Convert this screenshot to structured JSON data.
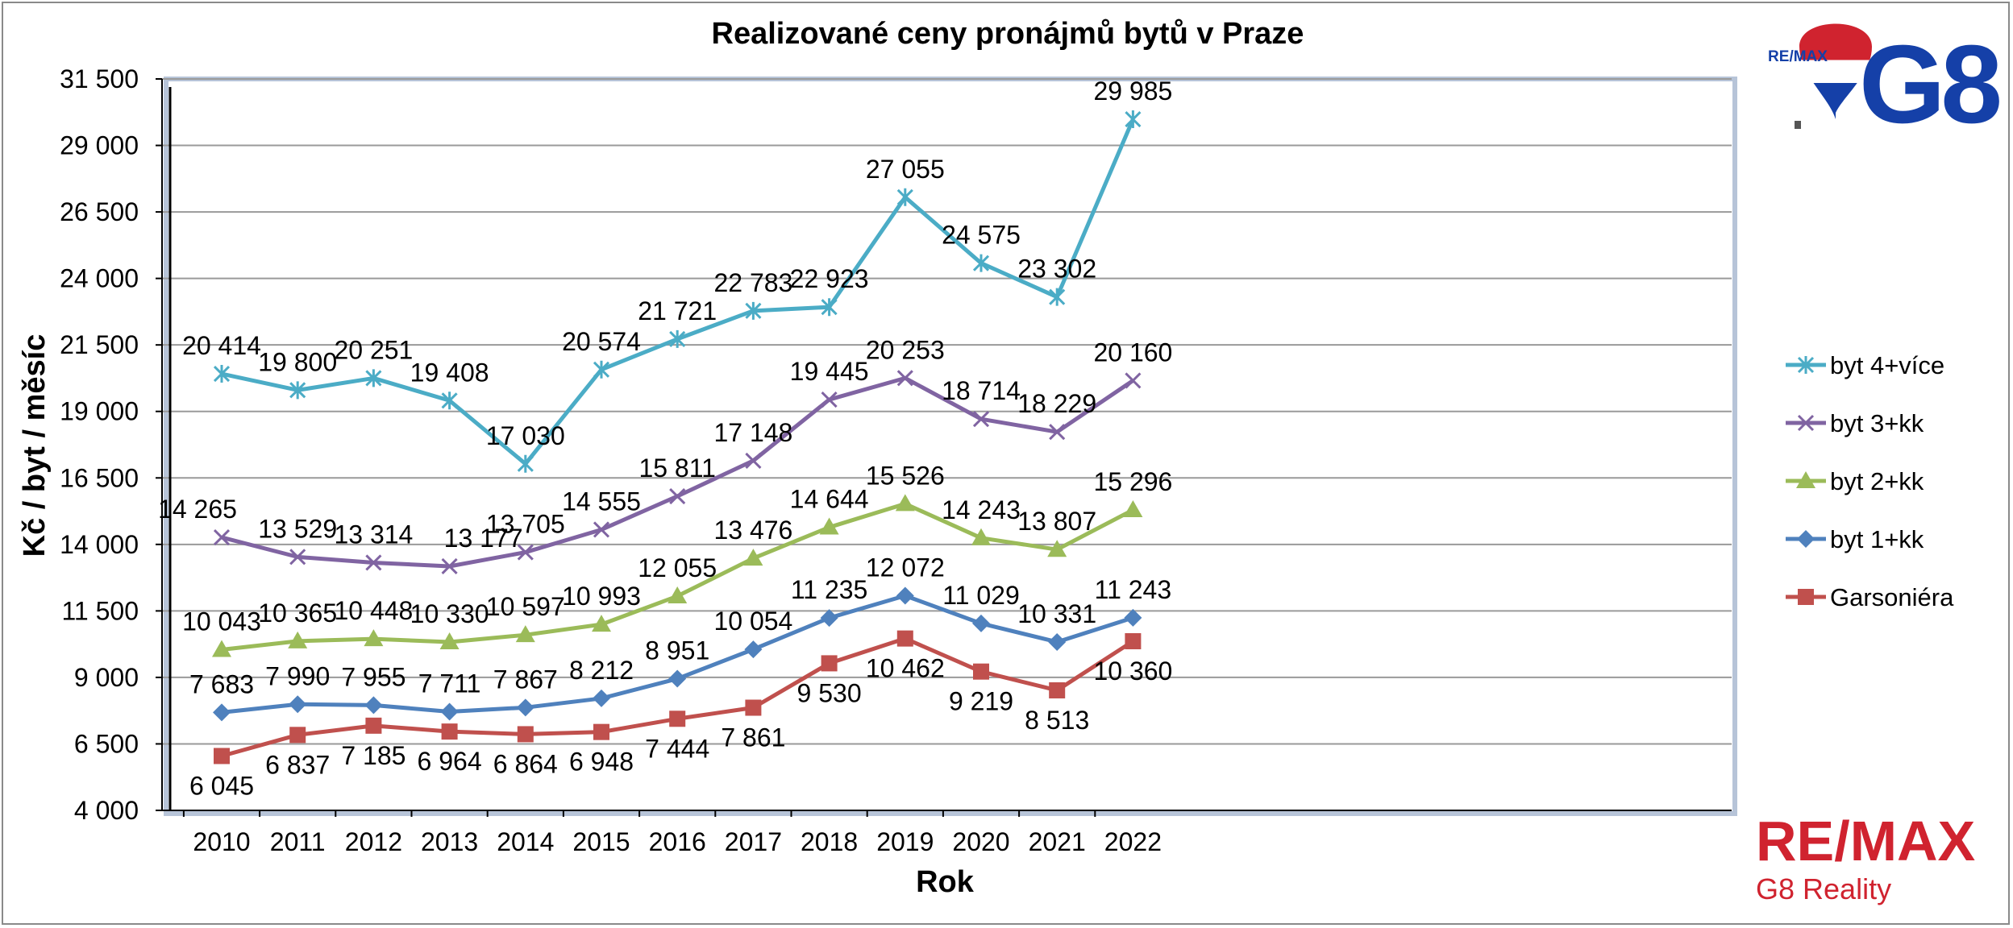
{
  "chart_data": {
    "type": "line",
    "title": "Realizované ceny pronájmů bytů v Praze",
    "xlabel": "Rok",
    "ylabel": "Kč / byt / měsíc",
    "categories": [
      "2010",
      "2011",
      "2012",
      "2013",
      "2014",
      "2015",
      "2016",
      "2017",
      "2018",
      "2019",
      "2020",
      "2021",
      "2022"
    ],
    "ylim": [
      4000,
      31500
    ],
    "yticks": [
      4000,
      6500,
      9000,
      11500,
      14000,
      16500,
      19000,
      21500,
      24000,
      26500,
      29000,
      31500
    ],
    "ytick_labels": [
      "4 000",
      "6 500",
      "9 000",
      "11 500",
      "14 000",
      "16 500",
      "19 000",
      "21 500",
      "24 000",
      "26 500",
      "29 000",
      "31 500"
    ],
    "grid": true,
    "legend_position": "right",
    "series": [
      {
        "name": "byt 4+více",
        "color": "#4bacc6",
        "marker": "star",
        "values": [
          20414,
          19800,
          20251,
          19408,
          17030,
          20574,
          21721,
          22783,
          22923,
          27055,
          24575,
          23302,
          29985
        ],
        "labels": [
          "20 414",
          "19 800",
          "20 251",
          "19 408",
          "17 030",
          "20 574",
          "21 721",
          "22 783",
          "22 923",
          "27 055",
          "24 575",
          "23 302",
          "29 985"
        ]
      },
      {
        "name": "byt 3+kk",
        "color": "#8064a2",
        "marker": "x",
        "values": [
          14265,
          13529,
          13314,
          13177,
          13705,
          14555,
          15811,
          17148,
          19445,
          20253,
          18714,
          18229,
          20160
        ],
        "labels": [
          "14 265",
          "13 529",
          "13 314",
          "13 177",
          "13 705",
          "14 555",
          "15 811",
          "17 148",
          "19 445",
          "20 253",
          "18 714",
          "18 229",
          "20 160"
        ]
      },
      {
        "name": "byt 2+kk",
        "color": "#9bbb59",
        "marker": "triangle",
        "values": [
          10043,
          10365,
          10448,
          10330,
          10597,
          10993,
          12055,
          13476,
          14644,
          15526,
          14243,
          13807,
          15296
        ],
        "labels": [
          "10 043",
          "10 365",
          "10 448",
          "10 330",
          "10 597",
          "10 993",
          "12 055",
          "13 476",
          "14 644",
          "15 526",
          "14 243",
          "13 807",
          "15 296"
        ]
      },
      {
        "name": "byt 1+kk",
        "color": "#4f81bd",
        "marker": "diamond",
        "values": [
          7683,
          7990,
          7955,
          7711,
          7867,
          8212,
          8951,
          10054,
          11235,
          12072,
          11029,
          10331,
          11243
        ],
        "labels": [
          "7 683",
          "7 990",
          "7 955",
          "7 711",
          "7 867",
          "8 212",
          "8 951",
          "10 054",
          "11 235",
          "12 072",
          "11 029",
          "10 331",
          "11 243"
        ]
      },
      {
        "name": "Garsoniéra",
        "color": "#c0504d",
        "marker": "square",
        "values": [
          6045,
          6837,
          7185,
          6964,
          6864,
          6948,
          7444,
          7861,
          9530,
          10462,
          9219,
          8513,
          10360
        ],
        "labels": [
          "6 045",
          "6 837",
          "7 185",
          "6 964",
          "6 864",
          "6 948",
          "7 444",
          "7 861",
          "9 530",
          "10 462",
          "9 219",
          "8 513",
          "10 360"
        ]
      }
    ]
  },
  "branding": {
    "balloon_text": "RE/MAX",
    "g8_text": "G8",
    "remax_text": "RE/MAX",
    "g8_reality_text": "G8 Reality",
    "colors": {
      "red": "#d0232f",
      "blue": "#1540a8"
    }
  }
}
